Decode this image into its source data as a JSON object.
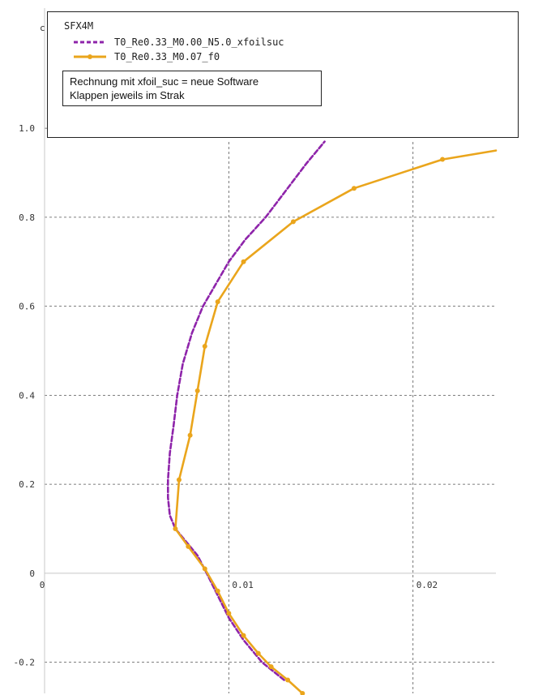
{
  "chart_data": {
    "type": "line",
    "ylabel": "c",
    "xlim": [
      0,
      0.0245
    ],
    "ylim": [
      -0.27,
      1.27
    ],
    "x_ticks": [
      {
        "value": 0,
        "label": "0"
      },
      {
        "value": 0.01,
        "label": "0.01"
      },
      {
        "value": 0.02,
        "label": "0.02"
      }
    ],
    "y_ticks": [
      {
        "value": 1.0,
        "label": "1.0"
      },
      {
        "value": 0.8,
        "label": "0.8"
      },
      {
        "value": 0.6,
        "label": "0.6"
      },
      {
        "value": 0.4,
        "label": "0.4"
      },
      {
        "value": 0.2,
        "label": "0.2"
      },
      {
        "value": 0,
        "label": "0"
      },
      {
        "value": -0.2,
        "label": "-0.2"
      }
    ],
    "grid": true,
    "legend": {
      "title": "SFX4M",
      "placement": "top",
      "note_lines": [
        "Rechnung mit xfoil_suc = neue Software",
        "Klappen jeweils im Strak"
      ]
    },
    "series": [
      {
        "name": "T0_Re0.33_M0.00_N5.0_xfoilsuc",
        "color": "#8e24aa",
        "dashed": true,
        "markers": false,
        "points": [
          [
            0.013,
            -0.24
          ],
          [
            0.0118,
            -0.2
          ],
          [
            0.0108,
            -0.15
          ],
          [
            0.01,
            -0.1
          ],
          [
            0.0094,
            -0.05
          ],
          [
            0.0088,
            0.0
          ],
          [
            0.0083,
            0.04
          ],
          [
            0.0077,
            0.07
          ],
          [
            0.0071,
            0.1
          ],
          [
            0.0068,
            0.13
          ],
          [
            0.0067,
            0.17
          ],
          [
            0.0067,
            0.21
          ],
          [
            0.0068,
            0.27
          ],
          [
            0.007,
            0.33
          ],
          [
            0.0072,
            0.4
          ],
          [
            0.0075,
            0.47
          ],
          [
            0.008,
            0.54
          ],
          [
            0.0086,
            0.6
          ],
          [
            0.0093,
            0.65
          ],
          [
            0.01,
            0.7
          ],
          [
            0.0109,
            0.75
          ],
          [
            0.012,
            0.8
          ],
          [
            0.0131,
            0.86
          ],
          [
            0.0142,
            0.92
          ],
          [
            0.0152,
            0.97
          ]
        ]
      },
      {
        "name": "T0_Re0.33_M0.07_f0",
        "color": "#eaa51c",
        "dashed": false,
        "markers": true,
        "points": [
          [
            0.014,
            -0.27
          ],
          [
            0.0132,
            -0.24
          ],
          [
            0.0123,
            -0.21
          ],
          [
            0.0116,
            -0.18
          ],
          [
            0.0108,
            -0.14
          ],
          [
            0.01,
            -0.09
          ],
          [
            0.0094,
            -0.04
          ],
          [
            0.0087,
            0.01
          ],
          [
            0.0078,
            0.06
          ],
          [
            0.0071,
            0.1
          ],
          [
            0.0073,
            0.21
          ],
          [
            0.0079,
            0.31
          ],
          [
            0.0083,
            0.41
          ],
          [
            0.0087,
            0.51
          ],
          [
            0.0094,
            0.61
          ],
          [
            0.0108,
            0.7
          ],
          [
            0.0135,
            0.79
          ],
          [
            0.0168,
            0.865
          ],
          [
            0.0216,
            0.93
          ],
          [
            0.0245,
            0.95
          ]
        ]
      }
    ]
  }
}
